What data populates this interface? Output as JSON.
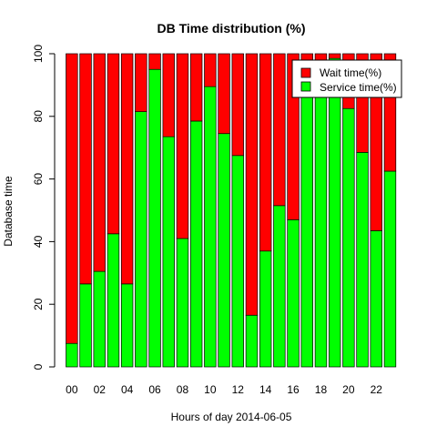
{
  "chart_data": {
    "type": "bar",
    "stacked": true,
    "title": "DB Time distribution (%)",
    "xlabel": "Hours of day 2014-06-05",
    "ylabel": "Database time",
    "ylim": [
      0,
      100
    ],
    "y_ticks": [
      0,
      20,
      40,
      60,
      80,
      100
    ],
    "categories": [
      "00",
      "01",
      "02",
      "03",
      "04",
      "05",
      "06",
      "07",
      "08",
      "09",
      "10",
      "11",
      "12",
      "13",
      "14",
      "15",
      "16",
      "17",
      "18",
      "19",
      "20",
      "21",
      "22",
      "23"
    ],
    "x_tick_labels": [
      "00",
      "02",
      "04",
      "06",
      "08",
      "10",
      "12",
      "14",
      "16",
      "18",
      "20",
      "22"
    ],
    "x_tick_label_categories": [
      "00",
      "02",
      "04",
      "06",
      "08",
      "10",
      "12",
      "14",
      "16",
      "18",
      "20",
      "22"
    ],
    "series": [
      {
        "name": "Service time(%)",
        "color": "#00ff00",
        "values": [
          7.5,
          26.5,
          30.5,
          42.5,
          26.5,
          81.5,
          95,
          73.5,
          41,
          78.5,
          89.5,
          74.5,
          67.5,
          16.5,
          37,
          51.5,
          47,
          90,
          89.5,
          98.5,
          82.5,
          68.5,
          43.5,
          62.5
        ]
      },
      {
        "name": "Wait time(%)",
        "color": "#ff0000",
        "values": [
          92.5,
          73.5,
          69.5,
          57.5,
          73.5,
          18.5,
          5,
          26.5,
          59,
          21.5,
          10.5,
          25.5,
          32.5,
          83.5,
          63,
          48.5,
          53,
          10,
          10.5,
          1.5,
          17.5,
          31.5,
          56.5,
          37.5
        ]
      }
    ],
    "legend": {
      "position": "top-right",
      "entries": [
        {
          "label": "Wait time(%)",
          "color": "#ff0000"
        },
        {
          "label": "Service time(%)",
          "color": "#00ff00"
        }
      ]
    },
    "grid": false
  }
}
